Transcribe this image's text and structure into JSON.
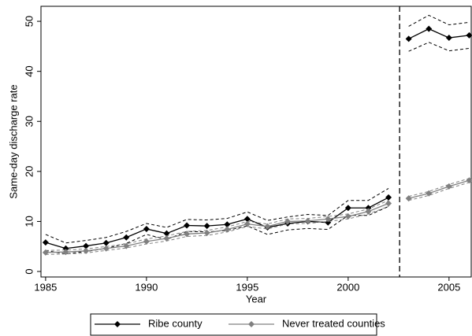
{
  "chart_data": {
    "type": "line",
    "y_label": "Same-day discharge rate",
    "x_label": "Year",
    "x": [
      1985,
      1986,
      1987,
      1988,
      1989,
      1990,
      1991,
      1992,
      1993,
      1994,
      1995,
      1996,
      1997,
      1998,
      1999,
      2000,
      2001,
      2002,
      2003,
      2004,
      2005,
      2006
    ],
    "series": [
      {
        "name": "Ribe county",
        "color": "#000000",
        "values": [
          5.8,
          4.6,
          5.1,
          5.7,
          6.8,
          8.5,
          7.6,
          9.2,
          9.1,
          9.4,
          10.5,
          8.8,
          9.6,
          10.0,
          9.8,
          12.7,
          12.7,
          14.8,
          46.5,
          48.5,
          46.7,
          47.2
        ],
        "ci_upper": [
          7.4,
          5.7,
          6.2,
          6.8,
          8.0,
          9.6,
          8.8,
          10.4,
          10.3,
          10.6,
          11.9,
          10.2,
          10.9,
          11.4,
          11.2,
          14.2,
          14.2,
          16.6,
          49.0,
          51.2,
          49.3,
          49.8
        ],
        "ci_lower": [
          4.2,
          3.5,
          4.0,
          4.6,
          5.6,
          7.4,
          6.4,
          8.0,
          7.9,
          8.2,
          9.1,
          7.4,
          8.3,
          8.6,
          8.4,
          11.2,
          11.2,
          13.0,
          44.0,
          45.8,
          44.1,
          44.6
        ]
      },
      {
        "name": "Never treated counties",
        "color": "#808080",
        "values": [
          3.8,
          3.9,
          4.1,
          4.6,
          5.1,
          6.0,
          6.6,
          7.5,
          7.7,
          8.4,
          9.5,
          9.0,
          10.0,
          10.1,
          10.5,
          11.0,
          12.0,
          13.6,
          14.6,
          15.6,
          17.0,
          18.2
        ],
        "ci_upper": [
          4.2,
          4.3,
          4.5,
          5.0,
          5.5,
          6.5,
          7.1,
          8.0,
          8.2,
          8.9,
          10.0,
          9.5,
          10.5,
          10.6,
          11.0,
          11.5,
          12.5,
          14.2,
          15.0,
          16.0,
          17.4,
          18.6
        ],
        "ci_lower": [
          3.4,
          3.5,
          3.7,
          4.2,
          4.7,
          5.5,
          6.1,
          7.0,
          7.2,
          7.9,
          9.0,
          8.5,
          9.5,
          9.6,
          10.0,
          10.5,
          11.5,
          13.0,
          14.2,
          15.2,
          16.6,
          17.8
        ]
      }
    ],
    "vline": 2002.55,
    "xlim": [
      1984.77,
      2006.1
    ],
    "xticks": [
      1985,
      1990,
      1995,
      2000,
      2005
    ],
    "ylim": [
      -1.1,
      53
    ],
    "yticks": [
      0,
      10,
      20,
      30,
      40,
      50
    ],
    "grid": false,
    "legend": "bottom"
  }
}
